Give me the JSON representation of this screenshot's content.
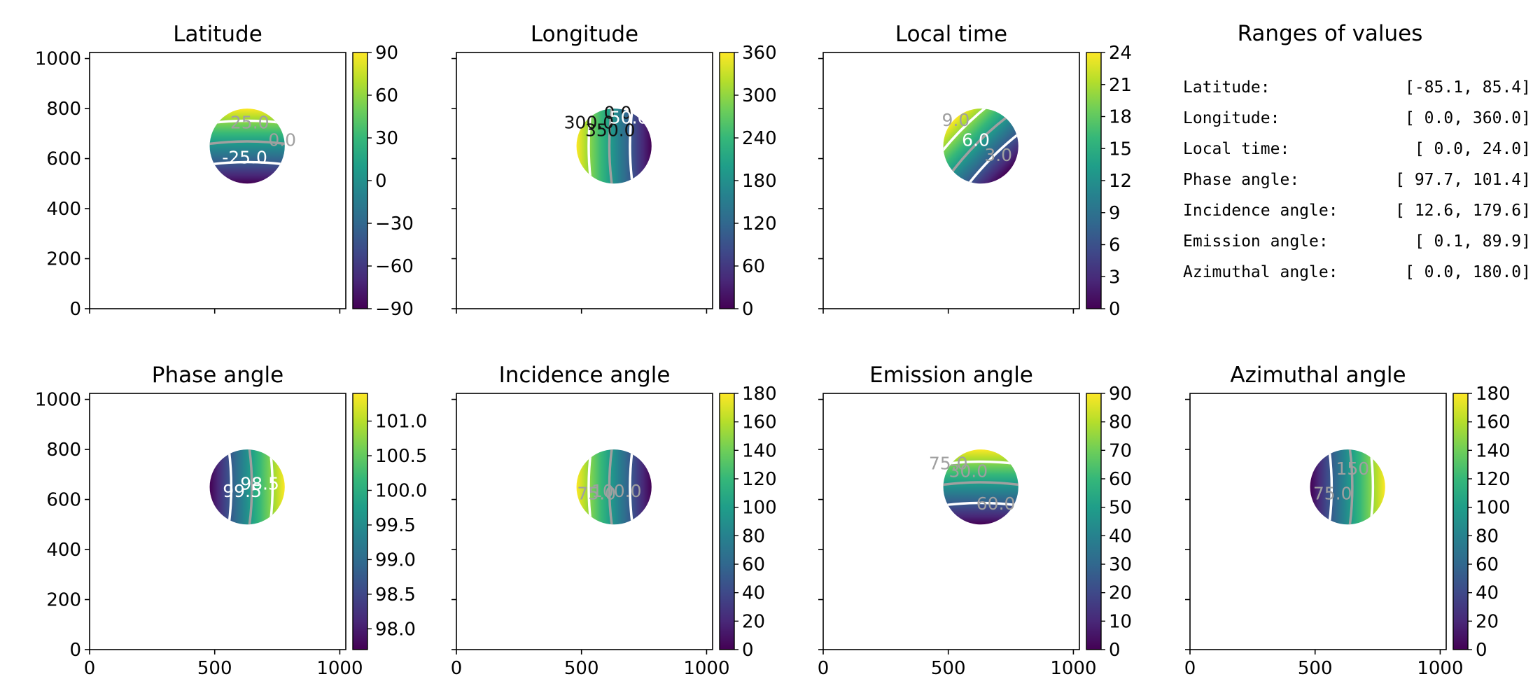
{
  "colors": {
    "viridis": [
      "#440154",
      "#482878",
      "#3e4989",
      "#31688e",
      "#26828e",
      "#1f9e89",
      "#35b779",
      "#6ece58",
      "#b5de2b",
      "#fde725"
    ],
    "contour_white": "#ffffff",
    "contour_gray": "#a0a0a0",
    "contour_dark": "#111111"
  },
  "axis": {
    "y_ticks": [
      "0",
      "200",
      "400",
      "600",
      "800",
      "1000"
    ],
    "x_ticks": [
      "0",
      "500",
      "1000"
    ]
  },
  "chart_data": [
    {
      "type": "heatmap",
      "title": "Latitude",
      "xlim": [
        0,
        1024
      ],
      "ylim": [
        0,
        1024
      ],
      "disk": {
        "cx": 630,
        "cy": 650,
        "r": 150
      },
      "colorbar": {
        "range": [
          -90,
          90
        ],
        "ticks": [
          "90",
          "60",
          "30",
          "0",
          "−30",
          "−60",
          "−90"
        ]
      },
      "gradient_angle": 90,
      "contour_labels": [
        {
          "text": "25.0",
          "x": 640,
          "y": 720,
          "color": "gray"
        },
        {
          "text": "0.0",
          "x": 770,
          "y": 650,
          "color": "gray"
        },
        {
          "text": "-25.0",
          "x": 620,
          "y": 580,
          "color": "white"
        }
      ]
    },
    {
      "type": "heatmap",
      "title": "Longitude",
      "xlim": [
        0,
        1024
      ],
      "ylim": [
        0,
        1024
      ],
      "disk": {
        "cx": 630,
        "cy": 650,
        "r": 150
      },
      "colorbar": {
        "range": [
          0,
          360
        ],
        "ticks": [
          "360",
          "300",
          "240",
          "180",
          "120",
          "60",
          "0"
        ]
      },
      "gradient_angle": 180,
      "contour_labels": [
        {
          "text": "300.0",
          "x": 530,
          "y": 720,
          "color": "dark"
        },
        {
          "text": "350.0",
          "x": 615,
          "y": 690,
          "color": "dark"
        },
        {
          "text": "0.0",
          "x": 645,
          "y": 760,
          "color": "dark"
        },
        {
          "text": "50.0",
          "x": 690,
          "y": 740,
          "color": "white"
        }
      ]
    },
    {
      "type": "heatmap",
      "title": "Local time",
      "xlim": [
        0,
        1024
      ],
      "ylim": [
        0,
        1024
      ],
      "disk": {
        "cx": 630,
        "cy": 650,
        "r": 150
      },
      "colorbar": {
        "range": [
          0,
          24
        ],
        "ticks": [
          "24",
          "21",
          "18",
          "15",
          "12",
          "9",
          "6",
          "3",
          "0"
        ]
      },
      "gradient_angle": 135,
      "contour_labels": [
        {
          "text": "9.0",
          "x": 530,
          "y": 730,
          "color": "gray"
        },
        {
          "text": "6.0",
          "x": 610,
          "y": 650,
          "color": "white"
        },
        {
          "text": "3.0",
          "x": 700,
          "y": 590,
          "color": "gray"
        }
      ]
    },
    {
      "type": "heatmap",
      "title": "Phase angle",
      "xlim": [
        0,
        1024
      ],
      "ylim": [
        0,
        1024
      ],
      "disk": {
        "cx": 630,
        "cy": 650,
        "r": 150
      },
      "colorbar": {
        "range": [
          97.7,
          101.4
        ],
        "ticks": [
          "101.0",
          "100.5",
          "100.0",
          "99.5",
          "99.0",
          "98.5",
          "98.0"
        ]
      },
      "gradient_angle": 0,
      "contour_labels": [
        {
          "text": "99.5",
          "x": 610,
          "y": 610,
          "color": "white"
        },
        {
          "text": "98.5",
          "x": 680,
          "y": 640,
          "color": "white"
        }
      ]
    },
    {
      "type": "heatmap",
      "title": "Incidence angle",
      "xlim": [
        0,
        1024
      ],
      "ylim": [
        0,
        1024
      ],
      "disk": {
        "cx": 630,
        "cy": 650,
        "r": 150
      },
      "colorbar": {
        "range": [
          0,
          180
        ],
        "ticks": [
          "180",
          "160",
          "140",
          "120",
          "100",
          "80",
          "60",
          "40",
          "20",
          "0"
        ]
      },
      "gradient_angle": 180,
      "contour_labels": [
        {
          "text": "75.0",
          "x": 560,
          "y": 600,
          "color": "gray"
        },
        {
          "text": "100.0",
          "x": 640,
          "y": 610,
          "color": "gray"
        }
      ]
    },
    {
      "type": "heatmap",
      "title": "Emission angle",
      "xlim": [
        0,
        1024
      ],
      "ylim": [
        0,
        1024
      ],
      "disk": {
        "cx": 630,
        "cy": 650,
        "r": 150
      },
      "colorbar": {
        "range": [
          0,
          90
        ],
        "ticks": [
          "90",
          "80",
          "70",
          "60",
          "50",
          "40",
          "30",
          "20",
          "10",
          "0"
        ]
      },
      "gradient_angle": 90,
      "contour_labels": [
        {
          "text": "75.0",
          "x": 500,
          "y": 720,
          "color": "gray"
        },
        {
          "text": "30.0",
          "x": 580,
          "y": 690,
          "color": "gray"
        },
        {
          "text": "60.0",
          "x": 690,
          "y": 560,
          "color": "gray"
        }
      ]
    },
    {
      "type": "heatmap",
      "title": "Azimuthal angle",
      "xlim": [
        0,
        1024
      ],
      "ylim": [
        0,
        1024
      ],
      "disk": {
        "cx": 630,
        "cy": 650,
        "r": 150
      },
      "colorbar": {
        "range": [
          0,
          180
        ],
        "ticks": [
          "180",
          "160",
          "140",
          "120",
          "100",
          "80",
          "60",
          "40",
          "20",
          "0"
        ]
      },
      "gradient_angle": 0,
      "contour_labels": [
        {
          "text": "75.0",
          "x": 570,
          "y": 600,
          "color": "gray"
        },
        {
          "text": "150",
          "x": 650,
          "y": 700,
          "color": "gray"
        }
      ]
    }
  ],
  "ranges": {
    "title": "Ranges of values",
    "rows": [
      {
        "label": "Latitude:",
        "value": "[-85.1,  85.4]"
      },
      {
        "label": "Longitude:",
        "value": "[  0.0, 360.0]"
      },
      {
        "label": "Local time:",
        "value": "[  0.0,  24.0]"
      },
      {
        "label": "Phase angle:",
        "value": "[ 97.7, 101.4]"
      },
      {
        "label": "Incidence angle:",
        "value": "[ 12.6, 179.6]"
      },
      {
        "label": "Emission angle:",
        "value": "[  0.1,  89.9]"
      },
      {
        "label": "Azimuthal angle:",
        "value": "[  0.0, 180.0]"
      }
    ]
  }
}
